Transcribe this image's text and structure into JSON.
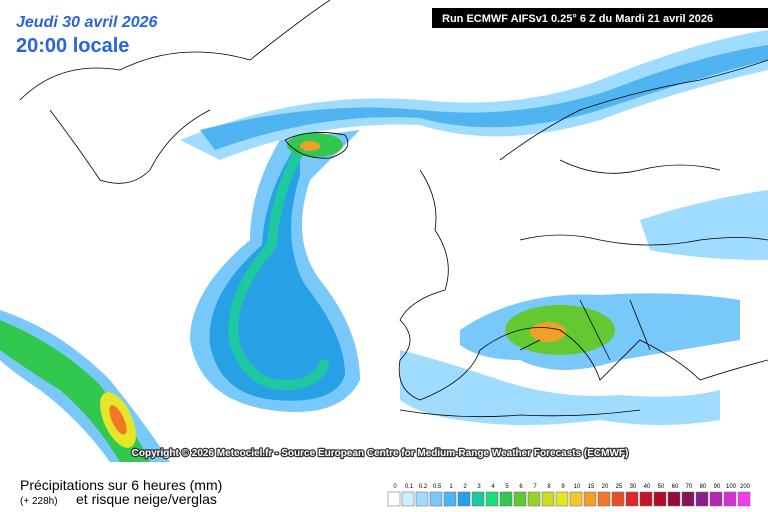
{
  "header": {
    "date": "Jeudi 30 avril 2026",
    "time": "20:00 locale",
    "run": "Run ECMWF AIFSv1 0.25° 6 Z du Mardi 21 avril 2026"
  },
  "copyright": "Copyright © 2026 Meteociel.fr - Source European Centre for Medium-Range Weather Forecasts (ECMWF)",
  "caption": {
    "line1": "Précipitations sur 6 heures (mm)",
    "lead": "(+ 228h)",
    "line2": "et risque neige/verglas"
  },
  "legend": {
    "labels": [
      "0",
      "0.1",
      "0.2",
      "0.5",
      "1",
      "2",
      "3",
      "4",
      "5",
      "6",
      "7",
      "8",
      "9",
      "10",
      "15",
      "20",
      "25",
      "30",
      "40",
      "50",
      "60",
      "70",
      "80",
      "90",
      "100",
      "200"
    ],
    "colors": [
      "#ffffff",
      "#c8f0ff",
      "#a0dcff",
      "#78c8fa",
      "#50b4f0",
      "#28a0e6",
      "#1ec8a0",
      "#1edc78",
      "#32c850",
      "#64c832",
      "#96d228",
      "#c8dc28",
      "#e6e628",
      "#f0c828",
      "#f0a028",
      "#f07828",
      "#e65028",
      "#dc2828",
      "#c81428",
      "#b40a28",
      "#960a3c",
      "#82145a",
      "#8c1e8c",
      "#b428b4",
      "#d232d2",
      "#f03cf0"
    ]
  }
}
